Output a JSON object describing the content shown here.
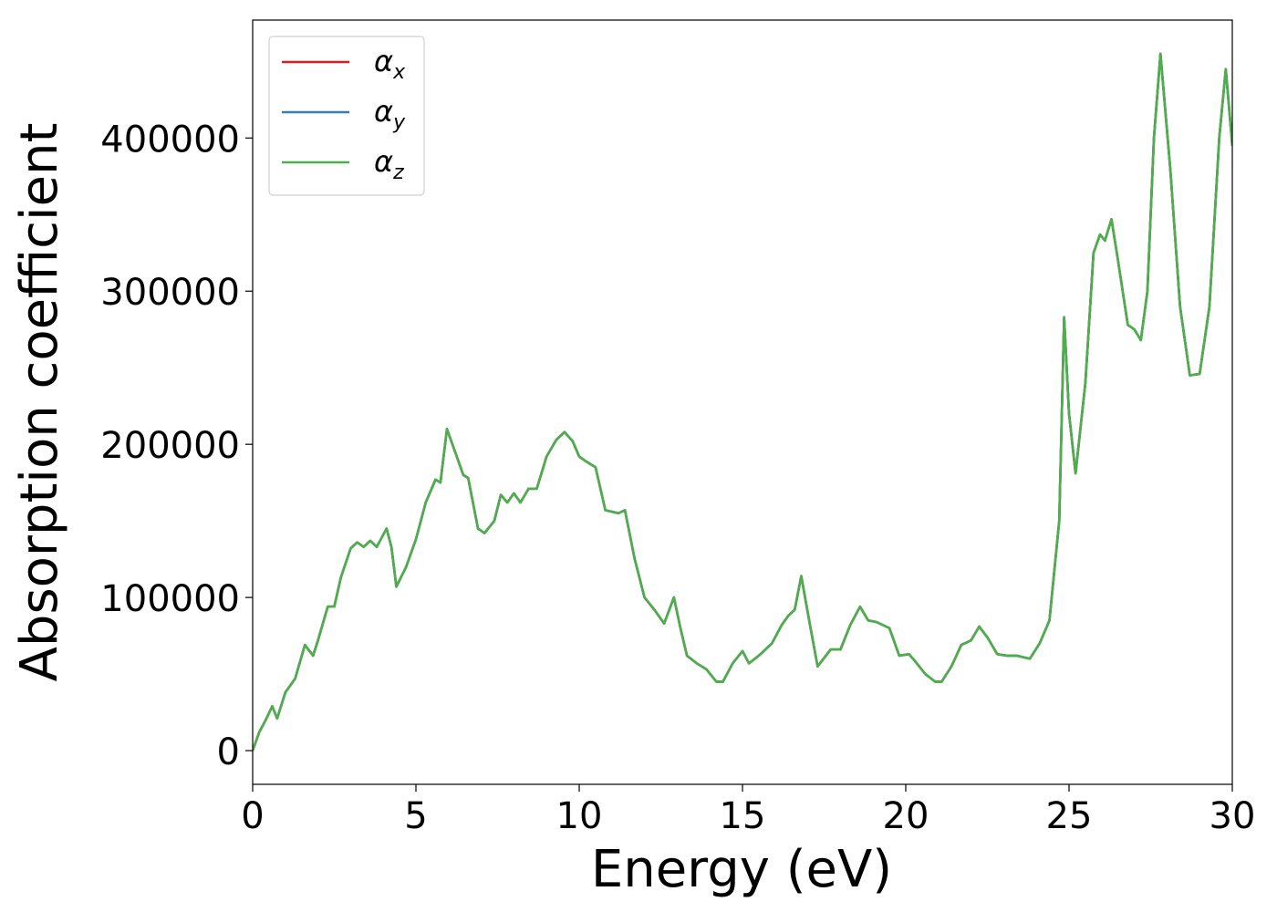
{
  "chart_data": {
    "type": "line",
    "xlabel": "Energy (eV)",
    "ylabel": "Absorption coefficient",
    "x": [
      0,
      0.2,
      0.4,
      0.6,
      0.75,
      1.0,
      1.3,
      1.6,
      1.85,
      2.0,
      2.3,
      2.5,
      2.7,
      3.0,
      3.2,
      3.4,
      3.6,
      3.8,
      4.1,
      4.25,
      4.4,
      4.7,
      5.0,
      5.3,
      5.6,
      5.75,
      5.95,
      6.2,
      6.45,
      6.6,
      6.9,
      7.1,
      7.4,
      7.6,
      7.8,
      8.0,
      8.2,
      8.45,
      8.7,
      9.0,
      9.3,
      9.55,
      9.8,
      10.0,
      10.2,
      10.5,
      10.8,
      11.2,
      11.4,
      11.7,
      12.0,
      12.3,
      12.6,
      12.9,
      13.1,
      13.3,
      13.6,
      13.9,
      14.2,
      14.4,
      14.7,
      15.0,
      15.2,
      15.5,
      15.9,
      16.2,
      16.4,
      16.6,
      16.8,
      17.0,
      17.3,
      17.7,
      18.0,
      18.3,
      18.6,
      18.85,
      19.1,
      19.5,
      19.8,
      20.1,
      20.3,
      20.6,
      20.9,
      21.1,
      21.4,
      21.7,
      22.0,
      22.25,
      22.5,
      22.8,
      23.1,
      23.4,
      23.6,
      23.8,
      24.1,
      24.4,
      24.7,
      24.85,
      25.0,
      25.2,
      25.5,
      25.75,
      25.95,
      26.1,
      26.3,
      26.5,
      26.8,
      27.0,
      27.2,
      27.4,
      27.6,
      27.8,
      28.1,
      28.4,
      28.7,
      29.0,
      29.3,
      29.6,
      29.8,
      30.0
    ],
    "series": [
      {
        "name": "αx",
        "color": "#e41a1c",
        "values": [
          0,
          12000,
          20000,
          29000,
          21000,
          38000,
          47000,
          69000,
          62000,
          72000,
          94000,
          94000,
          113000,
          132000,
          136000,
          133000,
          137000,
          133000,
          145000,
          133000,
          107000,
          120000,
          138000,
          162000,
          177000,
          175000,
          210000,
          195000,
          180000,
          178000,
          145000,
          142000,
          150000,
          167000,
          162000,
          168000,
          162000,
          171000,
          171000,
          192000,
          203000,
          208000,
          202000,
          192000,
          189000,
          185000,
          157000,
          155000,
          157000,
          125000,
          100000,
          92000,
          83000,
          100000,
          80000,
          62000,
          57000,
          53000,
          45000,
          45000,
          57000,
          65000,
          57000,
          62000,
          70000,
          82000,
          88000,
          92000,
          114000,
          90000,
          55000,
          66000,
          66000,
          82000,
          94000,
          85000,
          84000,
          80000,
          62000,
          63000,
          58000,
          50000,
          45000,
          45000,
          55000,
          69000,
          72000,
          81000,
          74000,
          63000,
          62000,
          62000,
          61000,
          60000,
          70000,
          85000,
          150000,
          283000,
          220000,
          181000,
          240000,
          325000,
          337000,
          333000,
          347000,
          320000,
          278000,
          275000,
          268000,
          300000,
          400000,
          455000,
          380000,
          290000,
          245000,
          246000,
          290000,
          400000,
          445000,
          395000
        ]
      },
      {
        "name": "αy",
        "color": "#377eb8",
        "values": [
          0,
          12000,
          20000,
          29000,
          21000,
          38000,
          47000,
          69000,
          62000,
          72000,
          94000,
          94000,
          113000,
          132000,
          136000,
          133000,
          137000,
          133000,
          145000,
          133000,
          107000,
          120000,
          138000,
          162000,
          177000,
          175000,
          210000,
          195000,
          180000,
          178000,
          145000,
          142000,
          150000,
          167000,
          162000,
          168000,
          162000,
          171000,
          171000,
          192000,
          203000,
          208000,
          202000,
          192000,
          189000,
          185000,
          157000,
          155000,
          157000,
          125000,
          100000,
          92000,
          83000,
          100000,
          80000,
          62000,
          57000,
          53000,
          45000,
          45000,
          57000,
          65000,
          57000,
          62000,
          70000,
          82000,
          88000,
          92000,
          114000,
          90000,
          55000,
          66000,
          66000,
          82000,
          94000,
          85000,
          84000,
          80000,
          62000,
          63000,
          58000,
          50000,
          45000,
          45000,
          55000,
          69000,
          72000,
          81000,
          74000,
          63000,
          62000,
          62000,
          61000,
          60000,
          70000,
          85000,
          150000,
          283000,
          220000,
          181000,
          240000,
          325000,
          337000,
          333000,
          347000,
          320000,
          278000,
          275000,
          268000,
          300000,
          400000,
          455000,
          380000,
          290000,
          245000,
          246000,
          290000,
          400000,
          445000,
          395000
        ]
      },
      {
        "name": "αz",
        "color": "#4daf4a",
        "values": [
          0,
          12000,
          20000,
          29000,
          21000,
          38000,
          47000,
          69000,
          62000,
          72000,
          94000,
          94000,
          113000,
          132000,
          136000,
          133000,
          137000,
          133000,
          145000,
          133000,
          107000,
          120000,
          138000,
          162000,
          177000,
          175000,
          210000,
          195000,
          180000,
          178000,
          145000,
          142000,
          150000,
          167000,
          162000,
          168000,
          162000,
          171000,
          171000,
          192000,
          203000,
          208000,
          202000,
          192000,
          189000,
          185000,
          157000,
          155000,
          157000,
          125000,
          100000,
          92000,
          83000,
          100000,
          80000,
          62000,
          57000,
          53000,
          45000,
          45000,
          57000,
          65000,
          57000,
          62000,
          70000,
          82000,
          88000,
          92000,
          114000,
          90000,
          55000,
          66000,
          66000,
          82000,
          94000,
          85000,
          84000,
          80000,
          62000,
          63000,
          58000,
          50000,
          45000,
          45000,
          55000,
          69000,
          72000,
          81000,
          74000,
          63000,
          62000,
          62000,
          61000,
          60000,
          70000,
          85000,
          150000,
          283000,
          220000,
          181000,
          240000,
          325000,
          337000,
          333000,
          347000,
          320000,
          278000,
          275000,
          268000,
          300000,
          400000,
          455000,
          380000,
          290000,
          245000,
          246000,
          290000,
          400000,
          445000,
          395000
        ]
      }
    ],
    "xlim": [
      0,
      30
    ],
    "xticks": [
      0,
      5,
      10,
      15,
      20,
      25,
      30
    ],
    "ylim": [
      -22000,
      477000
    ],
    "yticks": [
      0,
      100000,
      200000,
      300000,
      400000
    ],
    "legend": "upper left",
    "grid": false
  }
}
